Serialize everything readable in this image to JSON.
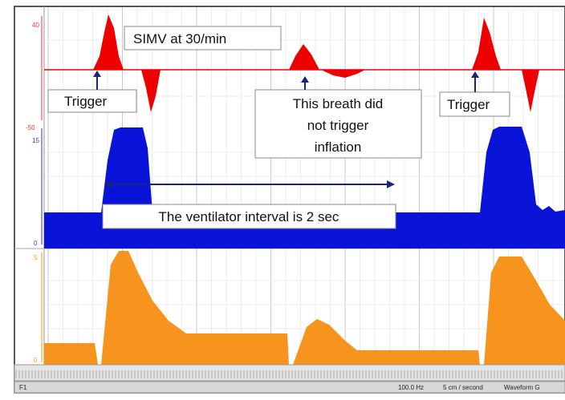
{
  "annotations": {
    "mode": "SIMV at 30/min",
    "trigger_1": "Trigger",
    "no_trigger": [
      "This breath did",
      "not trigger",
      "inflation"
    ],
    "trigger_2": "Trigger",
    "interval": "The ventilator interval is 2 sec"
  },
  "axis_labels": {
    "flow_top": "40",
    "flow_bottom": "-50",
    "pressure_top": "15",
    "pressure_bottom": "0",
    "volume_top": "5",
    "volume_bottom": "0"
  },
  "status_bar": {
    "channel": "F1",
    "rate": "100.0 Hz",
    "speed": "5 cm / second",
    "mode": "Waveform G"
  }
}
